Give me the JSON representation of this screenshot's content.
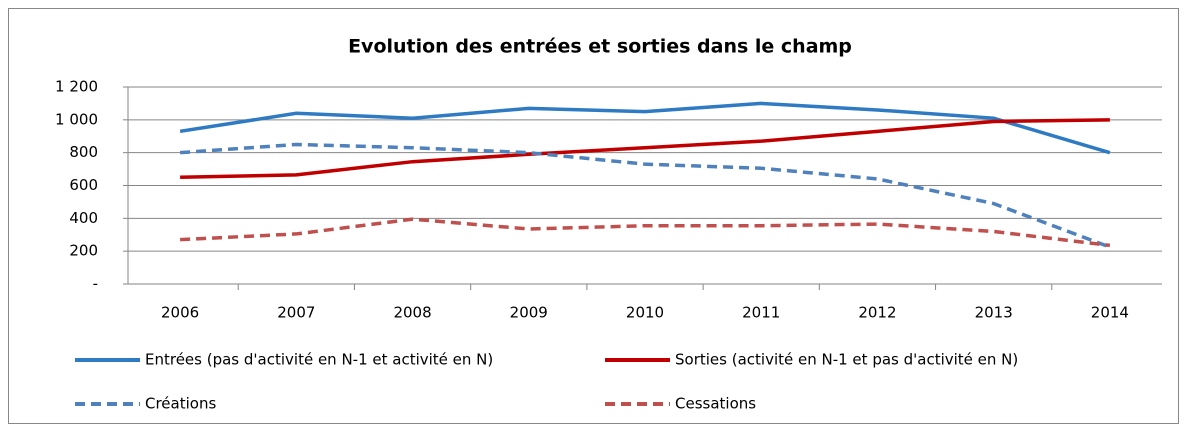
{
  "chart_data": {
    "type": "line",
    "title": "Evolution des entrées et sorties dans le champ",
    "categories": [
      "2006",
      "2007",
      "2008",
      "2009",
      "2010",
      "2011",
      "2012",
      "2013",
      "2014"
    ],
    "series": [
      {
        "name": "Entrées (pas d'activité en N-1 et activité en N)",
        "color": "#2e7bc4",
        "dashed": false,
        "values": [
          930,
          1040,
          1010,
          1070,
          1050,
          1100,
          1060,
          1010,
          800
        ]
      },
      {
        "name": "Sorties (activité en N-1 et pas d'activité en N)",
        "color": "#c00000",
        "dashed": false,
        "values": [
          650,
          665,
          745,
          790,
          830,
          870,
          930,
          990,
          1000
        ]
      },
      {
        "name": "Créations",
        "color": "#4f81bd",
        "dashed": true,
        "values": [
          800,
          850,
          830,
          800,
          730,
          705,
          640,
          490,
          225
        ]
      },
      {
        "name": "Cessations",
        "color": "#c0504d",
        "dashed": true,
        "values": [
          270,
          305,
          395,
          335,
          355,
          355,
          365,
          320,
          235
        ]
      }
    ],
    "ylim": [
      0,
      1200
    ],
    "yticks": [
      {
        "value": 0,
        "label": "-"
      },
      200,
      400,
      600,
      800,
      {
        "value": 1000,
        "label": "1 000"
      },
      {
        "value": 1200,
        "label": "1 200"
      }
    ],
    "grid": true
  }
}
